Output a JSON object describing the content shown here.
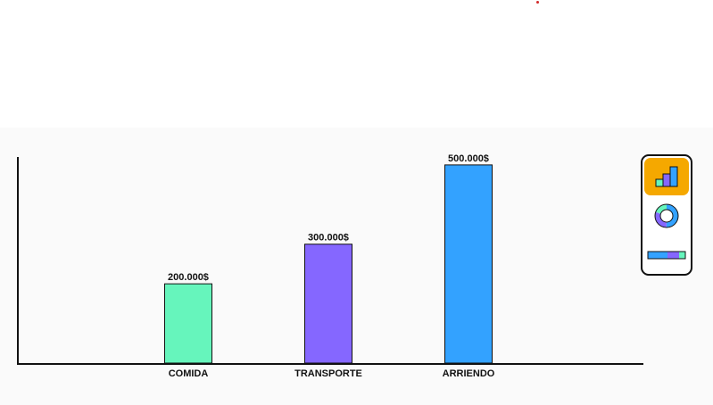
{
  "chart_data": {
    "type": "bar",
    "categories": [
      "COMIDA",
      "TRANSPORTE",
      "ARRIENDO"
    ],
    "values": [
      200000,
      300000,
      500000
    ],
    "value_labels": [
      "200.000$",
      "300.000$",
      "500.000$"
    ],
    "colors": [
      "#66f5bc",
      "#8567ff",
      "#33a2ff"
    ],
    "ylim": [
      0,
      520000
    ],
    "grid": false,
    "title": "",
    "xlabel": "",
    "ylabel": ""
  },
  "chart_switcher": {
    "options": [
      {
        "icon": "bar-chart-icon",
        "active": true
      },
      {
        "icon": "donut-chart-icon",
        "active": false
      },
      {
        "icon": "stacked-bar-icon",
        "active": false
      }
    ],
    "accent": "#f5a800"
  }
}
